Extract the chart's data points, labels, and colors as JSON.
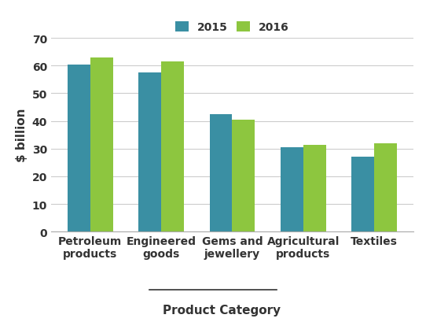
{
  "categories": [
    "Petroleum\nproducts",
    "Engineered\ngoods",
    "Gems and\njewellery",
    "Agricultural\nproducts",
    "Textiles"
  ],
  "values_2015": [
    60.5,
    57.5,
    42.5,
    30.5,
    27.0
  ],
  "values_2016": [
    63.0,
    61.5,
    40.5,
    31.5,
    32.0
  ],
  "color_2015": "#3a8fa3",
  "color_2016": "#8dc63f",
  "legend_labels": [
    "2015",
    "2016"
  ],
  "ylabel": "$ billion",
  "xlabel": "Product Category",
  "ylim": [
    0,
    70
  ],
  "yticks": [
    0,
    10,
    20,
    30,
    40,
    50,
    60,
    70
  ],
  "bar_width": 0.32,
  "tick_fontsize": 10,
  "legend_fontsize": 10,
  "xlabel_color": "#333333",
  "xlabel_fontsize": 11,
  "ylabel_fontsize": 11,
  "grid_color": "#cccccc",
  "spine_color": "#aaaaaa",
  "bg_color": "#ffffff"
}
